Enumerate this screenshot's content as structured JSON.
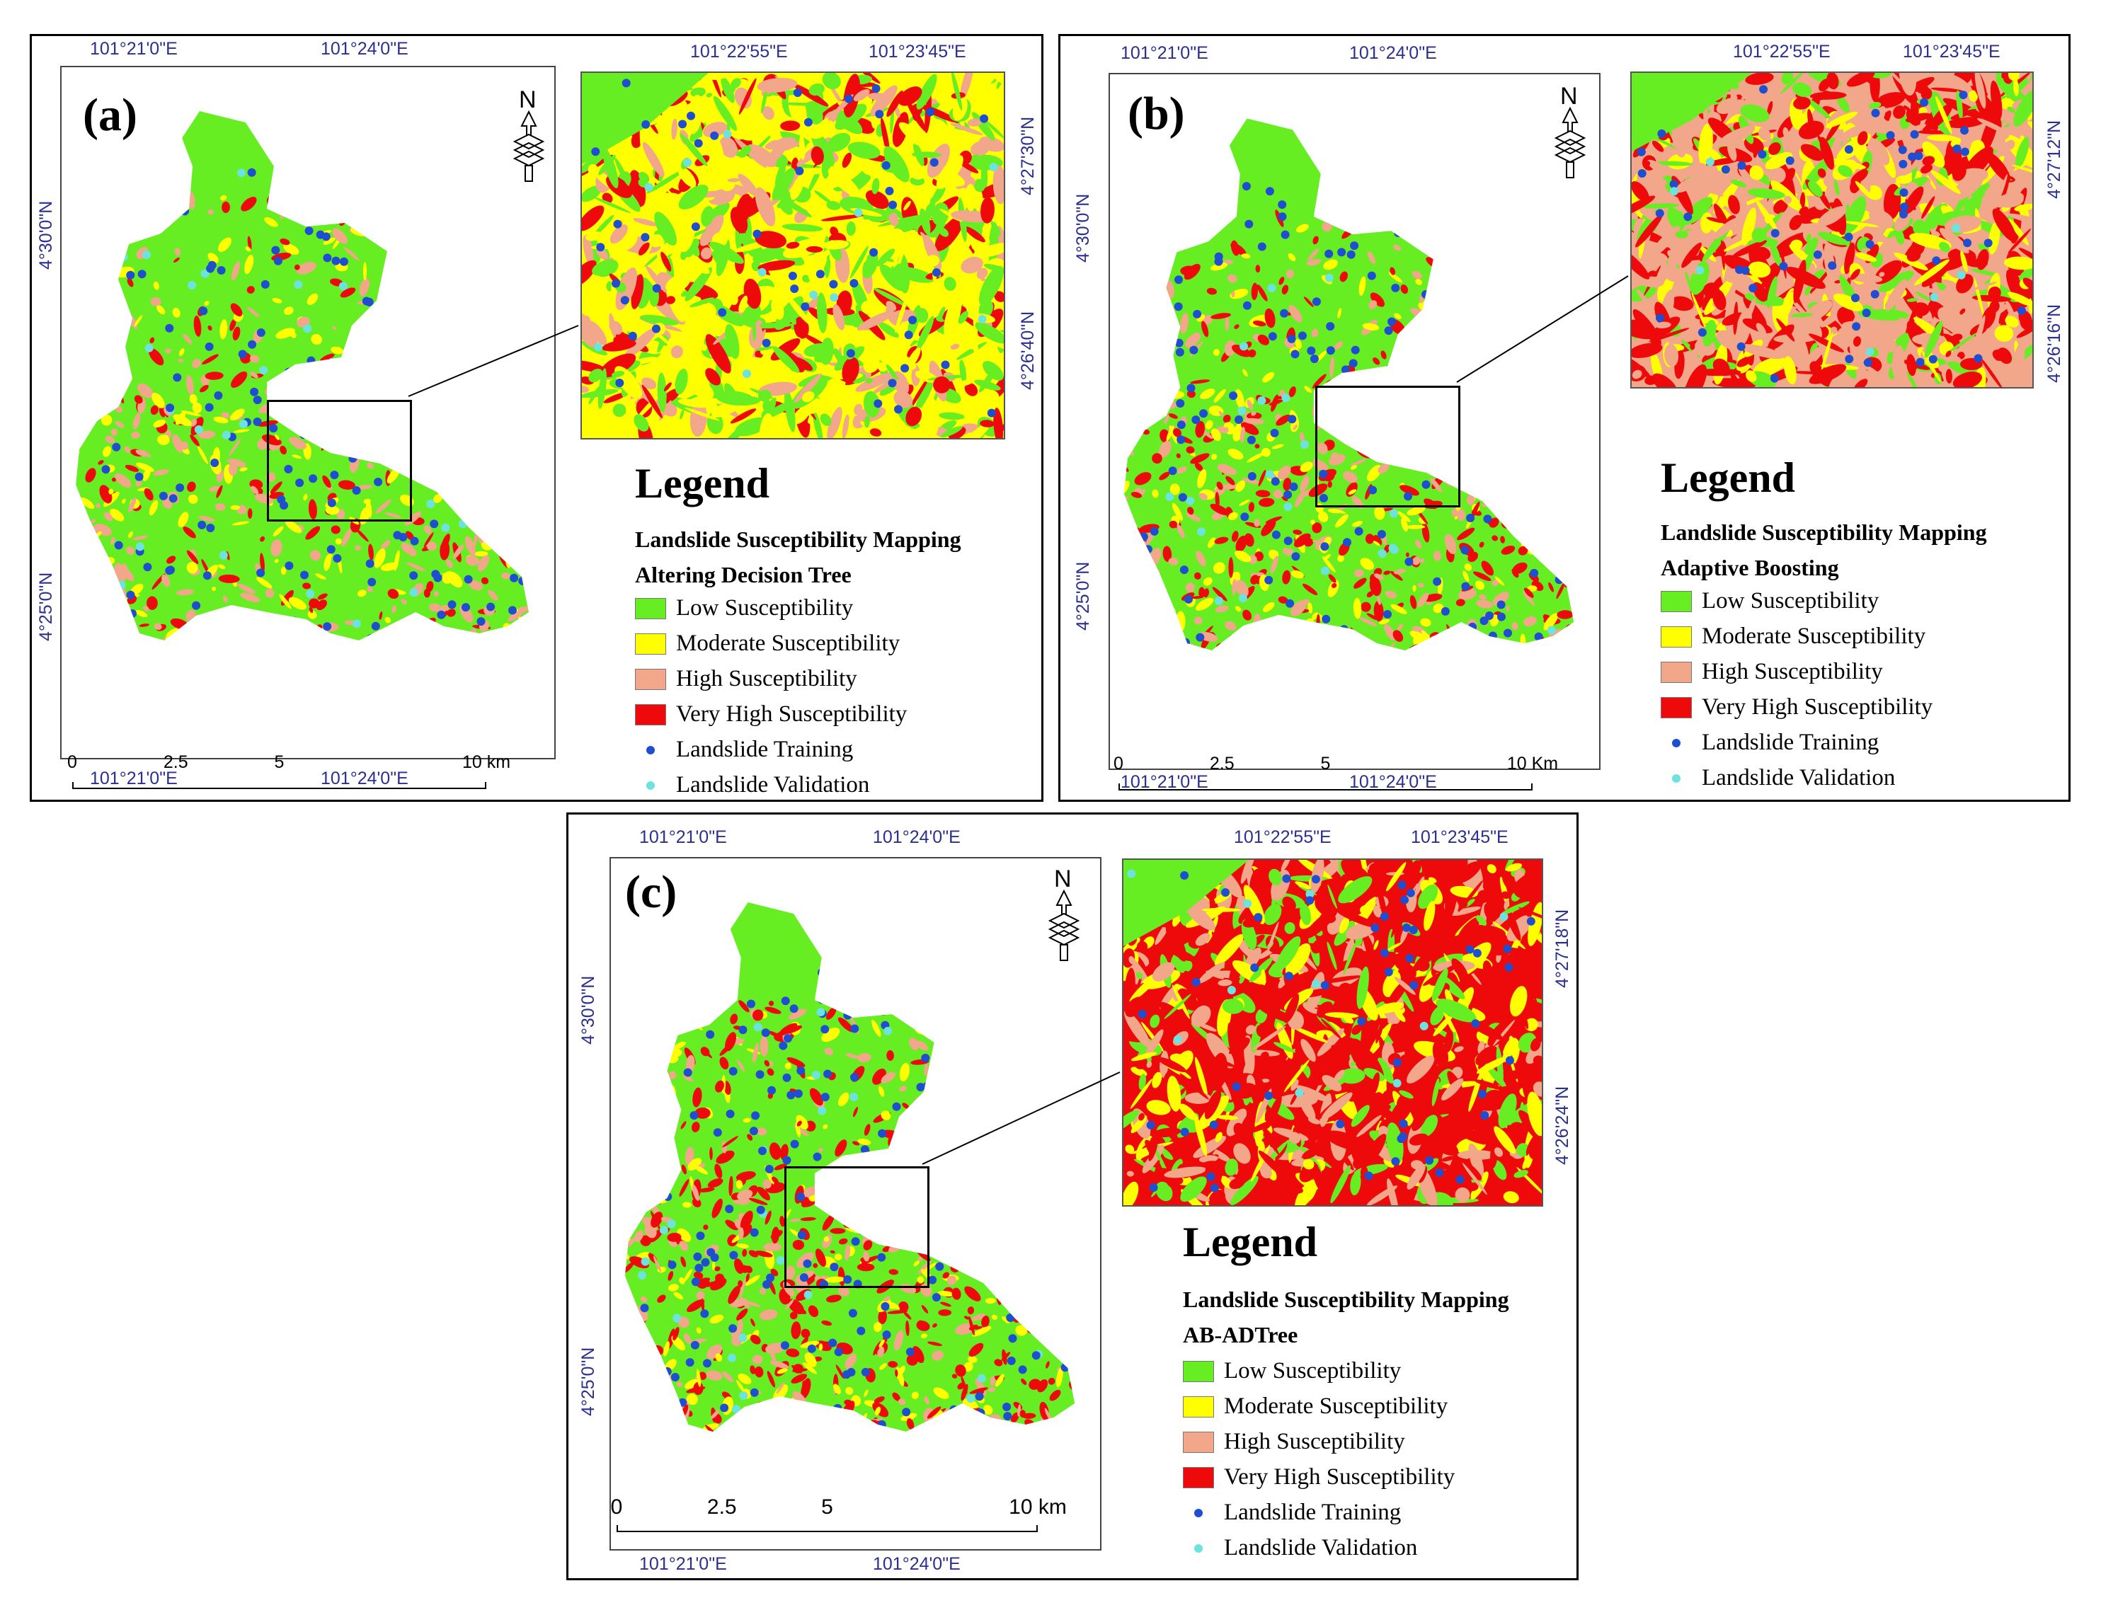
{
  "colors": {
    "low": "#66ee22",
    "moderate": "#ffff00",
    "high": "#f2a68a",
    "very_high": "#ee0a0a",
    "training": "#1f4fd0",
    "validation": "#6de3e0",
    "coord_text": "#2b2f8f"
  },
  "legend_common": {
    "title": "Legend",
    "subtitle": "Landslide Susceptibility Mapping",
    "items": [
      {
        "label": "Low Susceptibility",
        "kind": "swatch",
        "color_key": "low"
      },
      {
        "label": "Moderate Susceptibility",
        "kind": "swatch",
        "color_key": "moderate"
      },
      {
        "label": "High Susceptibility",
        "kind": "swatch",
        "color_key": "high"
      },
      {
        "label": "Very High Susceptibility",
        "kind": "swatch",
        "color_key": "very_high"
      },
      {
        "label": "Landslide Training",
        "kind": "dot",
        "color_key": "training"
      },
      {
        "label": "Landslide Validation",
        "kind": "dot",
        "color_key": "validation"
      }
    ]
  },
  "panels": [
    {
      "id": "a",
      "label": "(a)",
      "model": "Altering Decision Tree",
      "top_coords": [
        "101°21'0\"E",
        "101°24'0\"E"
      ],
      "bottom_coords": [
        "101°21'0\"E",
        "101°24'0\"E"
      ],
      "left_coords": [
        "4°30'0\"N",
        "4°25'0\"N"
      ],
      "inset_top_coords": [
        "101°22'55\"E",
        "101°23'45\"E"
      ],
      "inset_right_coords": [
        "4°27'30\"N",
        "4°26'40\"N"
      ],
      "scale_labels": [
        "0",
        "2.5",
        "5",
        "10 km"
      ],
      "north_symbol": "N"
    },
    {
      "id": "b",
      "label": "(b)",
      "model": "Adaptive Boosting",
      "top_coords": [
        "101°21'0\"E",
        "101°24'0\"E"
      ],
      "bottom_coords": [
        "101°21'0\"E",
        "101°24'0\"E"
      ],
      "left_coords": [
        "4°30'0\"N",
        "4°25'0\"N"
      ],
      "inset_top_coords": [
        "101°22'55\"E",
        "101°23'45\"E"
      ],
      "inset_right_coords": [
        "4°27'12\"N",
        "4°26'16\"N"
      ],
      "scale_labels": [
        "0",
        "2.5",
        "5",
        "10 Km"
      ],
      "north_symbol": "N"
    },
    {
      "id": "c",
      "label": "(c)",
      "model": "AB-ADTree",
      "top_coords": [
        "101°21'0\"E",
        "101°24'0\"E"
      ],
      "bottom_coords": [
        "101°21'0\"E",
        "101°24'0\"E"
      ],
      "left_coords": [
        "4°30'0\"N",
        "4°25'0\"N"
      ],
      "inset_top_coords": [
        "101°22'55\"E",
        "101°23'45\"E"
      ],
      "inset_right_coords": [
        "4°27'18\"N",
        "4°26'24\"N"
      ],
      "scale_labels": [
        "0",
        "2.5",
        "5",
        "10 km"
      ],
      "north_symbol": "N"
    }
  ]
}
